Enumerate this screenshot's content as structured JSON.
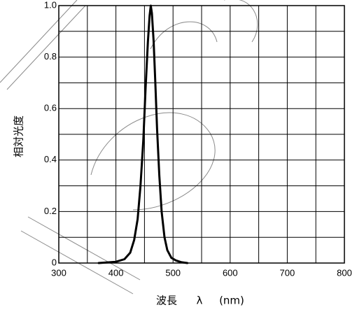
{
  "chart_data": {
    "type": "line",
    "title": "",
    "xlabel": "波長 λ (nm)",
    "ylabel": "相対光度",
    "xlim": [
      300,
      800
    ],
    "ylim": [
      0,
      1.0
    ],
    "x_ticks": [
      300,
      400,
      500,
      600,
      700,
      800
    ],
    "y_ticks": [
      0,
      0.2,
      0.4,
      0.6,
      0.8,
      1.0
    ],
    "x_tick_labels": [
      "300",
      "400",
      "500",
      "600",
      "700",
      "800"
    ],
    "y_tick_labels": [
      "0",
      "0.2",
      "0.4",
      "0.6",
      "0.8",
      "1.0"
    ],
    "grid": true,
    "legend": "none",
    "series": [
      {
        "color": "#000000",
        "x": [
          370,
          400,
          415,
          425,
          432,
          438,
          443,
          448,
          452,
          456,
          459,
          461,
          463,
          466,
          469,
          472,
          476,
          480,
          485,
          490,
          497,
          505,
          515,
          525
        ],
        "y": [
          0.0,
          0.005,
          0.015,
          0.04,
          0.09,
          0.17,
          0.3,
          0.48,
          0.68,
          0.86,
          0.96,
          1.0,
          0.97,
          0.86,
          0.7,
          0.52,
          0.34,
          0.2,
          0.1,
          0.05,
          0.02,
          0.01,
          0.003,
          0.0
        ]
      }
    ]
  },
  "axis_titles": {
    "x_main": "波長",
    "x_symbol": "λ",
    "x_unit": "(nm)",
    "y": "相対光度"
  }
}
